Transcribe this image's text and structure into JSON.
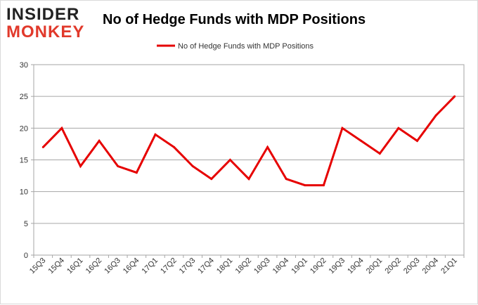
{
  "logo": {
    "line1": "INSIDER",
    "line2": "MONKEY"
  },
  "chart_data": {
    "type": "line",
    "title": "No of Hedge Funds with MDP Positions",
    "categories": [
      "15Q3",
      "15Q4",
      "16Q1",
      "16Q2",
      "16Q3",
      "16Q4",
      "17Q1",
      "17Q2",
      "17Q3",
      "17Q4",
      "18Q1",
      "18Q2",
      "18Q3",
      "18Q4",
      "19Q1",
      "19Q2",
      "19Q3",
      "19Q4",
      "20Q1",
      "20Q2",
      "20Q3",
      "20Q4",
      "21Q1"
    ],
    "series": [
      {
        "name": "No of Hedge Funds with MDP Positions",
        "values": [
          17,
          20,
          14,
          18,
          14,
          13,
          19,
          17,
          14,
          12,
          15,
          12,
          17,
          12,
          11,
          11,
          20,
          18,
          16,
          20,
          18,
          22,
          25
        ]
      }
    ],
    "yticks": [
      0,
      5,
      10,
      15,
      20,
      25,
      30
    ],
    "ylim": [
      0,
      30
    ],
    "xlabel": "",
    "ylabel": "",
    "grid": true,
    "legend": "top-center",
    "color": "#e60000"
  }
}
